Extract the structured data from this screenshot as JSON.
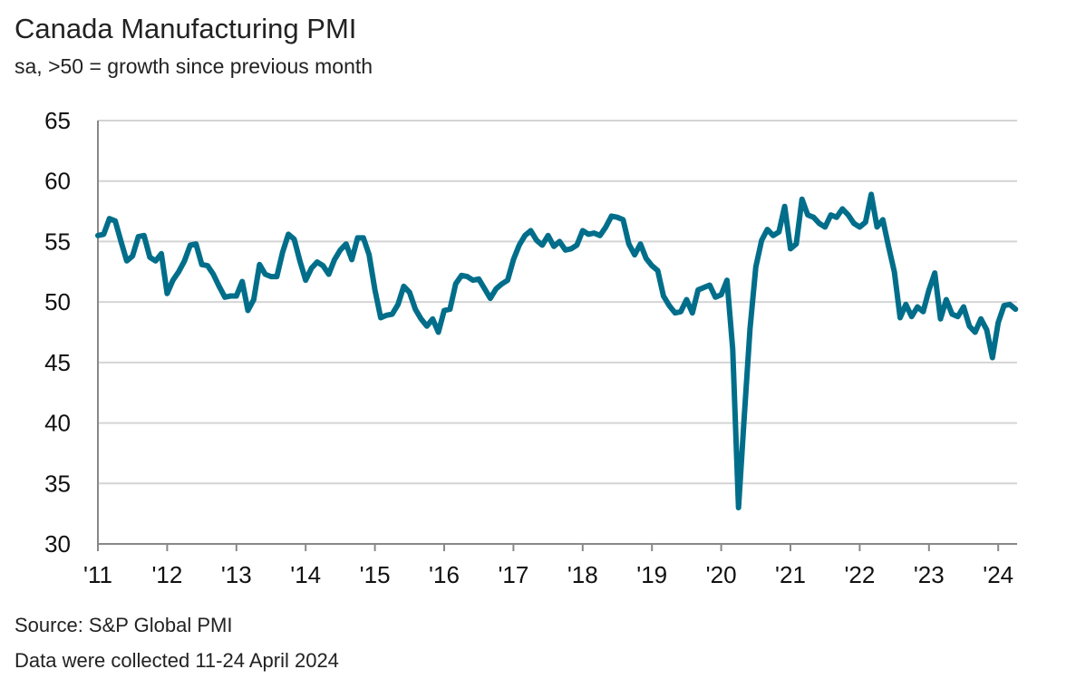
{
  "chart_data": {
    "type": "line",
    "title": "Canada Manufacturing PMI",
    "subtitle": "sa, >50 = growth since previous month",
    "xlabel": "",
    "ylabel": "",
    "ylim": [
      30,
      65
    ],
    "yticks": [
      "65",
      "60",
      "55",
      "50",
      "45",
      "40",
      "35",
      "30"
    ],
    "xticks": [
      "'11",
      "'12",
      "'13",
      "'14",
      "'15",
      "'16",
      "'17",
      "'18",
      "'19",
      "'20",
      "'21",
      "'22",
      "'23",
      "'24"
    ],
    "grid": true,
    "color": "#006e8a",
    "start": "2011-01",
    "frequency": "monthly",
    "series": [
      {
        "name": "Canada Manufacturing PMI",
        "values": [
          55.5,
          55.6,
          56.9,
          56.7,
          55.0,
          53.4,
          53.8,
          55.4,
          55.5,
          53.7,
          53.4,
          54.0,
          50.7,
          51.8,
          52.5,
          53.4,
          54.7,
          54.8,
          53.1,
          53.0,
          52.3,
          51.3,
          50.4,
          50.5,
          50.5,
          51.7,
          49.3,
          50.2,
          53.1,
          52.3,
          52.1,
          52.1,
          54.1,
          55.6,
          55.2,
          53.4,
          51.8,
          52.8,
          53.3,
          53.0,
          52.3,
          53.5,
          54.3,
          54.8,
          53.5,
          55.3,
          55.3,
          53.9,
          51.0,
          48.7,
          48.9,
          49.0,
          49.8,
          51.3,
          50.8,
          49.4,
          48.6,
          48.0,
          48.6,
          47.5,
          49.3,
          49.4,
          51.5,
          52.2,
          52.1,
          51.8,
          51.9,
          51.1,
          50.3,
          51.1,
          51.5,
          51.8,
          53.5,
          54.7,
          55.5,
          55.9,
          55.1,
          54.7,
          55.5,
          54.6,
          55.0,
          54.3,
          54.4,
          54.7,
          55.9,
          55.6,
          55.7,
          55.5,
          56.2,
          57.1,
          57.0,
          56.8,
          54.8,
          53.9,
          54.8,
          53.6,
          53.0,
          52.6,
          50.5,
          49.7,
          49.1,
          49.2,
          50.2,
          49.1,
          51.0,
          51.2,
          51.4,
          50.4,
          50.6,
          51.8,
          46.1,
          33.0,
          40.6,
          47.8,
          52.9,
          55.1,
          56.0,
          55.5,
          55.8,
          57.9,
          54.4,
          54.8,
          58.5,
          57.2,
          57.0,
          56.5,
          56.2,
          57.2,
          57.0,
          57.7,
          57.2,
          56.5,
          56.2,
          56.6,
          58.9,
          56.2,
          56.8,
          54.6,
          52.5,
          48.7,
          49.8,
          48.8,
          49.6,
          49.2,
          51.0,
          52.4,
          48.6,
          50.2,
          49.0,
          48.8,
          49.6,
          48.0,
          47.5,
          48.6,
          47.7,
          45.4,
          48.3,
          49.7,
          49.8,
          49.4
        ]
      }
    ],
    "source": "Source: S&P Global PMI",
    "note": "Data were collected 11-24 April 2024"
  }
}
